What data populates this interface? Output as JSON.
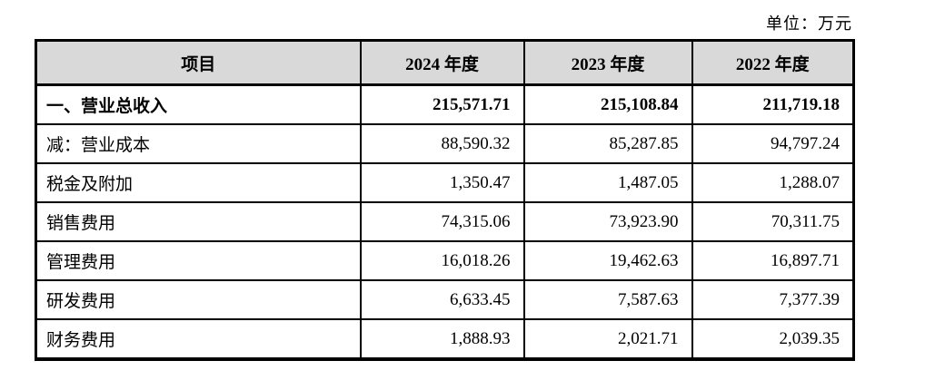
{
  "unit_note": "单位：万元",
  "table": {
    "headers": [
      "项目",
      "2024 年度",
      "2023 年度",
      "2022 年度"
    ],
    "rows": [
      {
        "label": "一、营业总收入",
        "bold": true,
        "values": [
          "215,571.71",
          "215,108.84",
          "211,719.18"
        ]
      },
      {
        "label": "减：营业成本",
        "bold": false,
        "values": [
          "88,590.32",
          "85,287.85",
          "94,797.24"
        ]
      },
      {
        "label": "税金及附加",
        "bold": false,
        "values": [
          "1,350.47",
          "1,487.05",
          "1,288.07"
        ]
      },
      {
        "label": "销售费用",
        "bold": false,
        "values": [
          "74,315.06",
          "73,923.90",
          "70,311.75"
        ]
      },
      {
        "label": "管理费用",
        "bold": false,
        "values": [
          "16,018.26",
          "19,462.63",
          "16,897.71"
        ]
      },
      {
        "label": "研发费用",
        "bold": false,
        "values": [
          "6,633.45",
          "7,587.63",
          "7,377.39"
        ]
      },
      {
        "label": "财务费用",
        "bold": false,
        "values": [
          "1,888.93",
          "2,021.71",
          "2,039.35"
        ]
      }
    ],
    "colors": {
      "header_bg": "#d9d9d9",
      "border": "#000000"
    }
  }
}
